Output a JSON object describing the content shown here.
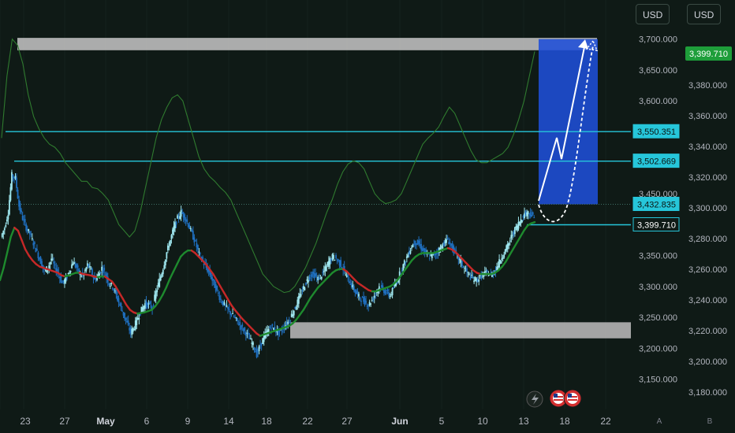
{
  "currency_left": "USD",
  "currency_right": "USD",
  "chart_data": {
    "type": "line",
    "title": "",
    "x_tick_labels": [
      "23",
      "27",
      "May",
      "6",
      "9",
      "14",
      "18",
      "22",
      "27",
      "Jun",
      "5",
      "10",
      "13",
      "18",
      "22"
    ],
    "bold_tick_labels": [
      "May",
      "Jun"
    ],
    "y_axis_left_ticks": [
      "3,700.000",
      "3,650.000",
      "3,600.000",
      "3,550.000",
      "3,450.000",
      "3,350.000",
      "3,300.000",
      "3,250.000",
      "3,200.000",
      "3,150.000"
    ],
    "y_axis_right_ticks": [
      "3,380.000",
      "3,360.000",
      "3,340.000",
      "3,320.000",
      "3,300.000",
      "3,280.000",
      "3,260.000",
      "3,240.000",
      "3,220.000",
      "3,200.000",
      "3,180.000"
    ],
    "price_labels": [
      {
        "text": "3,550.351",
        "value": 3550.351,
        "color": "#26c6da"
      },
      {
        "text": "3,502.669",
        "value": 3502.669,
        "color": "#26c6da"
      },
      {
        "text": "3,432.835",
        "value": 3432.835,
        "color": "#26c6da"
      },
      {
        "text": "3,399.710",
        "value": 3399.71,
        "color": "#26c6da"
      }
    ],
    "right_current_price": {
      "text": "3,399.710",
      "color": "#1e9e3a"
    },
    "zones": [
      {
        "name": "resistance-zone",
        "from": 3682,
        "to": 3702
      },
      {
        "name": "support-zone",
        "from": 3216,
        "to": 3242
      },
      {
        "name": "target-box",
        "from": 3432.835,
        "to": 3700
      }
    ],
    "series": [
      {
        "values": [
          3380,
          3395,
          3420,
          3480,
          3475,
          3430,
          3410,
          3395,
          3385,
          3370,
          3355,
          3340,
          3325,
          3330,
          3345,
          3330,
          3320,
          3305,
          3312,
          3325,
          3340,
          3330,
          3318,
          3320,
          3335,
          3325,
          3310,
          3318,
          3330,
          3320,
          3305,
          3300,
          3285,
          3270,
          3255,
          3240,
          3225,
          3235,
          3250,
          3262,
          3272,
          3270,
          3265,
          3290,
          3310,
          3330,
          3355,
          3375,
          3395,
          3410,
          3420,
          3412,
          3400,
          3385,
          3370,
          3352,
          3340,
          3330,
          3320,
          3305,
          3292,
          3278,
          3270,
          3262,
          3255,
          3248,
          3240,
          3232,
          3225,
          3215,
          3205,
          3190,
          3205,
          3218,
          3228,
          3235,
          3230,
          3225,
          3230,
          3238,
          3245,
          3258,
          3270,
          3285,
          3298,
          3310,
          3320,
          3318,
          3312,
          3318,
          3328,
          3340,
          3348,
          3345,
          3338,
          3328,
          3315,
          3305,
          3295,
          3285,
          3280,
          3275,
          3270,
          3278,
          3290,
          3300,
          3295,
          3290,
          3285,
          3298,
          3310,
          3325,
          3338,
          3352,
          3365,
          3372,
          3368,
          3360,
          3352,
          3348,
          3350,
          3355,
          3362,
          3370,
          3376,
          3365,
          3355,
          3345,
          3335,
          3325,
          3318,
          3312,
          3310,
          3315,
          3320,
          3322,
          3318,
          3325,
          3335,
          3348,
          3358,
          3370,
          3385,
          3395,
          3405,
          3415,
          3420,
          3418,
          3410
        ]
      },
      {
        "values": [
          3310,
          3330,
          3355,
          3380,
          3395,
          3390,
          3375,
          3360,
          3350,
          3342,
          3336,
          3332,
          3330,
          3328,
          3326,
          3324,
          3322,
          3318,
          3316,
          3318,
          3320,
          3322,
          3322,
          3320,
          3319,
          3318,
          3316,
          3315,
          3316,
          3316,
          3312,
          3308,
          3300,
          3290,
          3280,
          3270,
          3262,
          3258,
          3256,
          3257,
          3258,
          3260,
          3262,
          3268,
          3276,
          3286,
          3298,
          3312,
          3324,
          3336,
          3348,
          3354,
          3358,
          3358,
          3354,
          3348,
          3342,
          3336,
          3328,
          3320,
          3310,
          3300,
          3290,
          3280,
          3270,
          3262,
          3255,
          3248,
          3242,
          3236,
          3230,
          3224,
          3220,
          3222,
          3224,
          3226,
          3228,
          3230,
          3232,
          3234,
          3236,
          3240,
          3246,
          3254,
          3262,
          3272,
          3282,
          3290,
          3298,
          3304,
          3310,
          3316,
          3322,
          3326,
          3328,
          3328,
          3324,
          3318,
          3312,
          3306,
          3302,
          3298,
          3294,
          3292,
          3292,
          3294,
          3296,
          3298,
          3300,
          3304,
          3310,
          3318,
          3326,
          3334,
          3342,
          3348,
          3352,
          3354,
          3354,
          3354,
          3354,
          3356,
          3358,
          3360,
          3362,
          3360,
          3356,
          3350,
          3344,
          3338,
          3332,
          3326,
          3322,
          3320,
          3320,
          3320,
          3320,
          3322,
          3326,
          3332,
          3340,
          3350,
          3360,
          3370,
          3380,
          3390,
          3398,
          3402,
          3404
        ]
      },
      {
        "values": [
          3540,
          3640,
          3700,
          3690,
          3660,
          3610,
          3575,
          3555,
          3540,
          3530,
          3525,
          3515,
          3500,
          3490,
          3480,
          3470,
          3470,
          3460,
          3458,
          3450,
          3440,
          3420,
          3400,
          3390,
          3380,
          3390,
          3420,
          3460,
          3500,
          3540,
          3570,
          3590,
          3605,
          3610,
          3600,
          3570,
          3540,
          3510,
          3490,
          3478,
          3470,
          3460,
          3452,
          3440,
          3420,
          3400,
          3380,
          3360,
          3340,
          3320,
          3310,
          3300,
          3295,
          3290,
          3292,
          3300,
          3315,
          3330,
          3350,
          3370,
          3395,
          3420,
          3440,
          3465,
          3485,
          3498,
          3503,
          3500,
          3490,
          3470,
          3450,
          3440,
          3434,
          3436,
          3440,
          3450,
          3470,
          3490,
          3510,
          3530,
          3540,
          3548,
          3558,
          3575,
          3590,
          3580,
          3560,
          3540,
          3520,
          3505,
          3500,
          3500,
          3505,
          3510,
          3515,
          3525,
          3545,
          3570,
          3600,
          3640,
          3680
        ]
      }
    ]
  }
}
